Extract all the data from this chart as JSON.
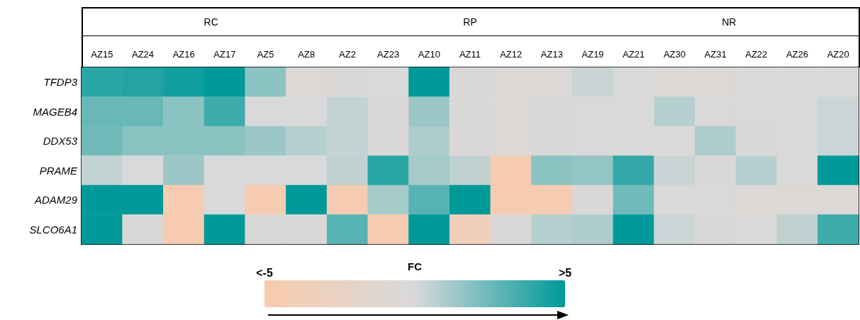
{
  "chart_data": {
    "type": "heatmap",
    "categories": [
      "AZ15",
      "AZ24",
      "AZ16",
      "AZ17",
      "AZ5",
      "AZ8",
      "AZ2",
      "AZ23",
      "AZ10",
      "AZ11",
      "AZ12",
      "AZ13",
      "AZ19",
      "AZ21",
      "AZ30",
      "AZ31",
      "AZ22",
      "AZ26",
      "AZ20"
    ],
    "y_categories": [
      "TFDP3",
      "MAGEB4",
      "DDX53",
      "PRAME",
      "ADAM29",
      "SLCO6A1"
    ],
    "cells": [
      [
        4,
        4.2,
        4.6,
        5,
        1.8,
        -0.3,
        -0.2,
        0,
        5,
        -0.2,
        -0.4,
        -0.3,
        0.4,
        0,
        -0.3,
        -0.5,
        0,
        0,
        0
      ],
      [
        2.6,
        2.6,
        1.8,
        3.6,
        0,
        0,
        0.5,
        -0.2,
        1.4,
        -0.2,
        -0.4,
        -0.2,
        0,
        0,
        0.8,
        0,
        0,
        0,
        0.3
      ],
      [
        2.4,
        1.8,
        1.8,
        1.8,
        1.4,
        0.8,
        0.5,
        -0.2,
        1,
        -0.2,
        -0.4,
        -0.2,
        0,
        0,
        -0.1,
        1,
        -0.2,
        0,
        0.3
      ],
      [
        0.5,
        0,
        1.4,
        0,
        0,
        0,
        0.6,
        4,
        1.2,
        0.6,
        -4.5,
        1.8,
        1.6,
        3.8,
        0.4,
        -0.2,
        0.8,
        0,
        5
      ],
      [
        5,
        5,
        -4.5,
        0,
        -4.5,
        5,
        -4.5,
        1.2,
        3,
        5,
        -4.5,
        -4.5,
        -0.2,
        2.4,
        0,
        0,
        -0.3,
        -0.5,
        -0.3
      ],
      [
        5,
        -0.2,
        -4.5,
        5,
        -0.2,
        -0.2,
        3,
        -4.5,
        5,
        -3.5,
        -0.2,
        0.8,
        1,
        5,
        0.3,
        -0.2,
        0,
        0.6,
        3.6
      ]
    ],
    "annotations": [
      "RC",
      "RP",
      "NR"
    ],
    "clabel": "FC",
    "clim": [
      -5,
      5
    ],
    "cticks": [
      {
        "value": -5,
        "label": "<-5"
      },
      {
        "value": 5,
        "label": ">5"
      }
    ]
  }
}
